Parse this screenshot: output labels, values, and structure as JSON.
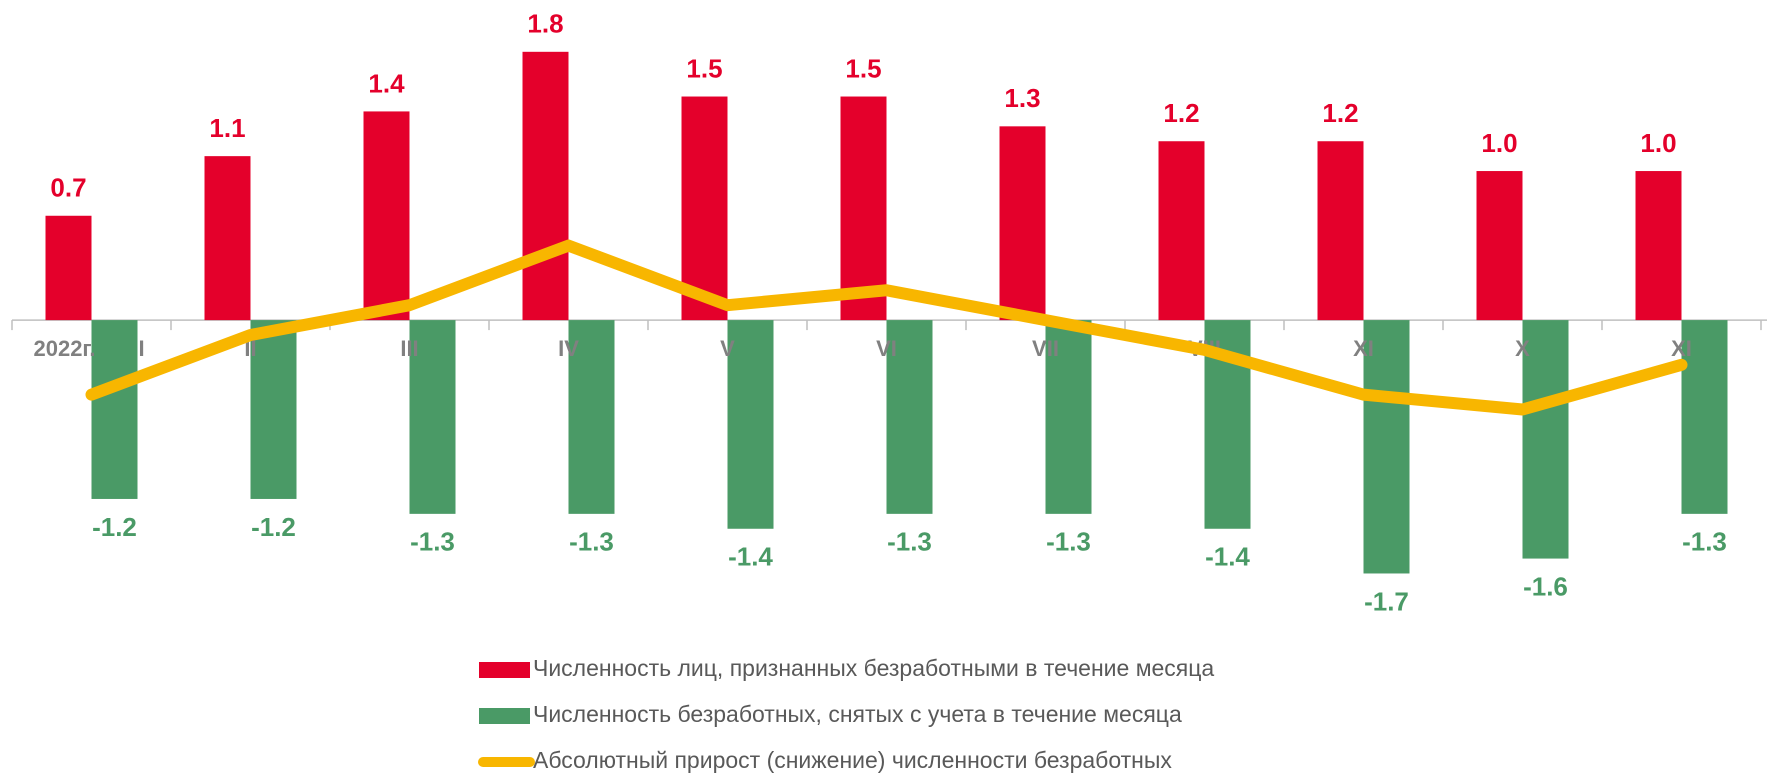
{
  "chart_data": {
    "type": "bar",
    "year_label": "2022г.",
    "categories": [
      "I",
      "II",
      "III",
      "IV",
      "V",
      "VI",
      "VII",
      "VIII",
      "XI",
      "X",
      "XI"
    ],
    "series": [
      {
        "name": "Численность лиц, признанных безработными в течение месяца",
        "color": "#e4002b",
        "values": [
          0.7,
          1.1,
          1.4,
          1.8,
          1.5,
          1.5,
          1.3,
          1.2,
          1.2,
          1.0,
          1.0
        ],
        "value_labels": [
          "0.7",
          "1.1",
          "1.4",
          "1.8",
          "1.5",
          "1.5",
          "1.3",
          "1.2",
          "1.2",
          "1.0",
          "1.0"
        ]
      },
      {
        "name": "Численность безработных, снятых с учета в течение месяца",
        "color": "#4a9a66",
        "values": [
          -1.2,
          -1.2,
          -1.3,
          -1.3,
          -1.4,
          -1.3,
          -1.3,
          -1.4,
          -1.7,
          -1.6,
          -1.3
        ],
        "value_labels": [
          "-1.2",
          "-1.2",
          "-1.3",
          "-1.3",
          "-1.4",
          "-1.3",
          "-1.3",
          "-1.4",
          "-1.7",
          "-1.6",
          "-1.3"
        ]
      },
      {
        "name": "Абсолютный прирост (снижение) численности безработных",
        "color": "#f8b600",
        "type": "line",
        "values": [
          -0.5,
          -0.1,
          0.1,
          0.5,
          0.1,
          0.2,
          0.0,
          -0.2,
          -0.5,
          -0.6,
          -0.3
        ]
      }
    ],
    "ylim": [
      -2.2,
      2.0
    ]
  }
}
